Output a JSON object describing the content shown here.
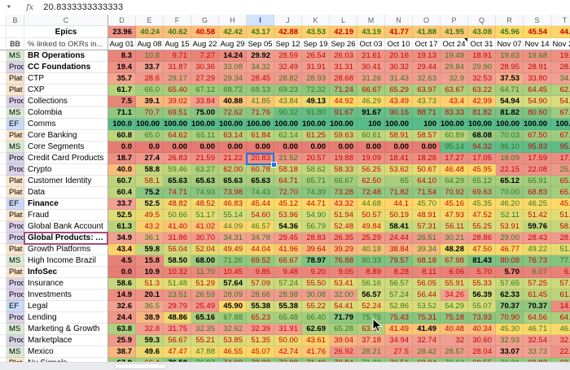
{
  "formula_bar": {
    "fx_label": "fx",
    "value": "20.8333333333333"
  },
  "columns": [
    "B",
    "C",
    "D",
    "E",
    "F",
    "G",
    "H",
    "I",
    "J",
    "K",
    "L",
    "M",
    "N",
    "O",
    "P",
    "Q",
    "R",
    "S",
    "T"
  ],
  "selected_column": "I",
  "selected_cell": {
    "column": "I",
    "team": "Credit Card Products",
    "display_value": "20.83"
  },
  "highlighted_team": "Global Products: AXP",
  "comment_marker_date": "Oct 24",
  "color_scale": {
    "min": "#e67c73",
    "mid": "#ffd966",
    "max": "#57bb8a",
    "up_text": "#38761d",
    "down_text": "#cc0000"
  },
  "type_colors": {
    "MS": "#d9ead3",
    "Prod": "#d9d2e9",
    "Plat": "#fce5cd",
    "EF": "#c9daf8"
  },
  "epics_row": {
    "b": "",
    "c": "Epics",
    "values": [
      "23.96",
      "40.24",
      "40.62",
      "40.58",
      "42.42",
      "43.17",
      "42.88",
      "43.53",
      "42.19",
      "43.19",
      "41.77",
      "41.88",
      "41.95",
      "43.08",
      "45.96",
      "45.54",
      "44.2"
    ]
  },
  "dates_row": {
    "b": "BB",
    "c": "% linked to OKRs in...",
    "values": [
      "Aug 01",
      "Aug 08",
      "Aug 15",
      "Aug 22",
      "Aug 29",
      "Sep 05",
      "Sep 12",
      "Sep 19",
      "Sep 26",
      "Oct 03",
      "Oct 10",
      "Oct 17",
      "Oct 24",
      "Oct 31",
      "Nov 07",
      "Nov 14",
      "Nov 21"
    ],
    "comment_index": 12
  },
  "teams": [
    {
      "type": "MS",
      "name": "BR Operations",
      "bold": true,
      "values": [
        "8.3",
        "10.8",
        "9.71",
        "7.27",
        "14.24",
        "29.92",
        "28.59",
        "26.54",
        "26.03",
        "21.61",
        "20.16",
        "19.13",
        "19.49",
        "18.91",
        "19.63",
        "19.68",
        "19.5"
      ]
    },
    {
      "type": "Prod",
      "name": "CC Foundations",
      "bold": true,
      "values": [
        "19.4",
        "33.7",
        "31.87",
        "30.36",
        "33.08",
        "34.32",
        "32.49",
        "31.91",
        "31.31",
        "30.41",
        "30.32",
        "29.44",
        "29.84",
        "29.90",
        "28.95",
        "28.91",
        "28.6"
      ]
    },
    {
      "type": "Plat",
      "name": "CTP",
      "bold": false,
      "values": [
        "35.7",
        "28.6",
        "29.17",
        "27.29",
        "29.34",
        "28.45",
        "28.82",
        "28.93",
        "28.68",
        "31.26",
        "31.43",
        "32.63",
        "32.9",
        "32.53",
        "37.53",
        "33.80",
        "34.4"
      ]
    },
    {
      "type": "Plat",
      "name": "CXP",
      "bold": false,
      "values": [
        "61.7",
        "66.0",
        "65.40",
        "67.12",
        "68.72",
        "69.13",
        "69.23",
        "72.32",
        "71.24",
        "66.67",
        "65.29",
        "63.97",
        "63.67",
        "63.22",
        "64.71",
        "64.45",
        "62.9"
      ]
    },
    {
      "type": "Prod",
      "name": "Collections",
      "bold": false,
      "values": [
        "7.5",
        "39.1",
        "39.02",
        "33.84",
        "40.88",
        "41.85",
        "43.84",
        "49.13",
        "44.92",
        "46.29",
        "43.49",
        "43.73",
        "43.4",
        "42.99",
        "54.94",
        "54.90",
        "54.3"
      ]
    },
    {
      "type": "MS",
      "name": "Colombia",
      "bold": false,
      "values": [
        "71.1",
        "70.7",
        "69.51",
        "75.00",
        "72.62",
        "71.76",
        "90.32",
        "91.80",
        "91.67",
        "91.67",
        "90.16",
        "88.71",
        "83.33",
        "81.82",
        "81.82",
        "80.60",
        "67.5"
      ]
    },
    {
      "type": "EF",
      "name": "Comms",
      "bold": false,
      "values": [
        "100.0",
        "100.00",
        "100.00",
        "100.00",
        "100.00",
        "100.00",
        "100.00",
        "100.00",
        "100.00",
        "100",
        "100.00",
        "100",
        "100.00",
        "100.00",
        "100.00",
        "100.00",
        "100.0"
      ]
    },
    {
      "type": "Plat",
      "name": "Core Banking",
      "bold": false,
      "values": [
        "60.8",
        "65.0",
        "64.62",
        "65.11",
        "63.14",
        "61.84",
        "62.14",
        "61.25",
        "59.63",
        "60.61",
        "58.91",
        "58.57",
        "60.89",
        "68.08",
        "70.03",
        "67.50",
        "67.1"
      ]
    },
    {
      "type": "MS",
      "name": "Core Segments",
      "bold": false,
      "values": [
        "0.0",
        "0.0",
        "0.00",
        "0.00",
        "0.00",
        "0.00",
        "0.00",
        "0.00",
        "0.00",
        "0.00",
        "0.00",
        "0.00",
        "95.14",
        "94.32",
        "96.10",
        "95.83",
        "95.8"
      ]
    },
    {
      "type": "Prod",
      "name": "Credit Card Products",
      "bold": false,
      "values": [
        "18.7",
        "27.4",
        "26.83",
        "21.59",
        "21.22",
        "20.83",
        "21.52",
        "20.57",
        "19.88",
        "19.09",
        "18.41",
        "18.28",
        "17.27",
        "17.05",
        "18.09",
        "17.59",
        "17.1"
      ]
    },
    {
      "type": "Prod",
      "name": "Crypto",
      "bold": false,
      "values": [
        "40.0",
        "58.8",
        "59.46",
        "63.27",
        "62.00",
        "60.78",
        "58.18",
        "58.62",
        "58.33",
        "56.25",
        "53.62",
        "50.67",
        "46.48",
        "45.95",
        "22.15",
        "22.08",
        "25.5"
      ]
    },
    {
      "type": "Plat",
      "name": "Customer Identity",
      "bold": false,
      "values": [
        "60.7",
        "58.1",
        "65.63",
        "65.63",
        "65.63",
        "65.63",
        "64.71",
        "65.71",
        "66.67",
        "62.50",
        "65",
        "64.10",
        "64.29",
        "65.12",
        "65.12",
        "65.91",
        "65.9"
      ]
    },
    {
      "type": "Plat",
      "name": "Data",
      "bold": false,
      "values": [
        "60.4",
        "75.2",
        "74.71",
        "74.93",
        "73.98",
        "74.43",
        "72.70",
        "74.39",
        "73.28",
        "72.48",
        "71.82",
        "71.54",
        "70.92",
        "69.63",
        "70.00",
        "68.83",
        "65.4"
      ]
    },
    {
      "type": "EF",
      "name": "Finance",
      "bold": true,
      "values": [
        "33.7",
        "52.5",
        "48.82",
        "48.52",
        "46.83",
        "45.44",
        "45.12",
        "44.71",
        "43.32",
        "44.68",
        "44.1",
        "45.70",
        "45.16",
        "45.35",
        "46.20",
        "46.25",
        "45.5"
      ]
    },
    {
      "type": "Plat",
      "name": "Fraud",
      "bold": false,
      "values": [
        "52.5",
        "49.5",
        "50.66",
        "51.17",
        "55.14",
        "54.60",
        "53.96",
        "54.90",
        "51.94",
        "50.57",
        "50.19",
        "48.91",
        "47.93",
        "47.52",
        "52.11",
        "51.42",
        "51.4"
      ]
    },
    {
      "type": "Prod",
      "name": "Global Bank Account",
      "bold": false,
      "values": [
        "61.3",
        "43.2",
        "41.40",
        "41.02",
        "44.09",
        "46.57",
        "54.36",
        "56.79",
        "52.48",
        "49.84",
        "58.41",
        "57.31",
        "56.11",
        "55.25",
        "53.91",
        "59.76",
        "58.3"
      ]
    },
    {
      "type": "Prod",
      "name": "Global Products: AXP",
      "bold": true,
      "values": [
        "34.9",
        "36.1",
        "31.86",
        "30.70",
        "34.31",
        "34.78",
        "29.45",
        "28.83",
        "26.35",
        "25.29",
        "24.44",
        "26.51",
        "30.21",
        "28.86",
        "29.00",
        "28.43",
        "28.2"
      ]
    },
    {
      "type": "Plat",
      "name": "Growth Platforms",
      "bold": false,
      "values": [
        "43.4",
        "59.8",
        "56.04",
        "52.04",
        "49.49",
        "44.04",
        "41.96",
        "39.64",
        "39.29",
        "40.18",
        "38.84",
        "39.34",
        "48.28",
        "47.50",
        "46.77",
        "49.22",
        "51.5"
      ]
    },
    {
      "type": "MS",
      "name": "High Income Brazil",
      "bold": false,
      "values": [
        "4.5",
        "15.8",
        "58.50",
        "68.00",
        "71.26",
        "69.52",
        "66.67",
        "78.97",
        "76.88",
        "80.33",
        "79.57",
        "68.18",
        "67.98",
        "81.43",
        "80.08",
        "76.73",
        "77.1"
      ]
    },
    {
      "type": "Plat",
      "name": "InfoSec",
      "bold": true,
      "values": [
        "0.0",
        "10.9",
        "10.32",
        "11.70",
        "10.45",
        "9.85",
        "9.48",
        "9.20",
        "9.05",
        "8.89",
        "8.28",
        "8.11",
        "6.06",
        "5.70",
        "5.70",
        "6.07",
        "6.0"
      ]
    },
    {
      "type": "Prod",
      "name": "Insurance",
      "bold": false,
      "values": [
        "58.6",
        "51.3",
        "51.48",
        "51.29",
        "57.64",
        "57.09",
        "57.24",
        "55.50",
        "53.41",
        "56.16",
        "56.57",
        "56.05",
        "55.91",
        "55.33",
        "57.65",
        "57.25",
        "57.2"
      ]
    },
    {
      "type": "Prod",
      "name": "Investments",
      "bold": false,
      "values": [
        "14.9",
        "20.1",
        "23.51",
        "26.59",
        "28.09",
        "28.66",
        "28.98",
        "30.08",
        "32.00",
        "56.57",
        "57.24",
        "56.44",
        "34.26",
        "56.39",
        "62.33",
        "61.45",
        "61.0"
      ]
    },
    {
      "type": "EF",
      "name": "Legal",
      "bold": false,
      "values": [
        "32.6",
        "36.5",
        "29.79",
        "25.49",
        "45.90",
        "55.38",
        "55.38",
        "55.22",
        "54.41",
        "52.24",
        "52.86",
        "53.52",
        "54.29",
        "55.07",
        "70.37",
        "70.37",
        "14.0"
      ]
    },
    {
      "type": "Prod",
      "name": "Lending",
      "bold": false,
      "values": [
        "24.4",
        "38.9",
        "48.86",
        "65.16",
        "67.88",
        "65.23",
        "65.48",
        "66.40",
        "71.79",
        "75.75",
        "75.43",
        "75.31",
        "75.18",
        "73.93",
        "70.90",
        "64.56",
        "64.3"
      ]
    },
    {
      "type": "MS",
      "name": "Marketing & Growth",
      "bold": false,
      "values": [
        "63.8",
        "32.8",
        "31.75",
        "32.35",
        "32.62",
        "32.39",
        "31.91",
        "62.69",
        "65.28",
        "63.51",
        "41.49",
        "41.49",
        "40.48",
        "40.34",
        "45.30",
        "46.71",
        "46.9"
      ]
    },
    {
      "type": "Prod",
      "name": "Marketplace",
      "bold": false,
      "values": [
        "25.9",
        "59.3",
        "56.67",
        "55.21",
        "53.85",
        "51.35",
        "50.00",
        "43.61",
        "39.04",
        "37.18",
        "34.94",
        "32.74",
        "32",
        "30.60",
        "32.93",
        "32.54",
        "32.1"
      ]
    },
    {
      "type": "MS",
      "name": "Mexico",
      "bold": false,
      "values": [
        "38.7",
        "49.6",
        "47.47",
        "47.88",
        "46.55",
        "45.07",
        "42.74",
        "41.76",
        "26.92",
        "28.21",
        "27.5",
        "28.42",
        "28.57",
        "28.04",
        "33.07",
        "33.73",
        "22.1"
      ]
    },
    {
      "type": "Plat",
      "name": "Nu Signals",
      "bold": false,
      "values": [
        "67.9",
        "66.4",
        "76.50",
        "76.97",
        "74.99",
        "73.93",
        "72.99",
        "71.40",
        "70.84",
        "71.23",
        "70.51",
        "69.94",
        "70.12",
        "69.55",
        "70.31",
        "69.82",
        "69.0"
      ]
    }
  ]
}
